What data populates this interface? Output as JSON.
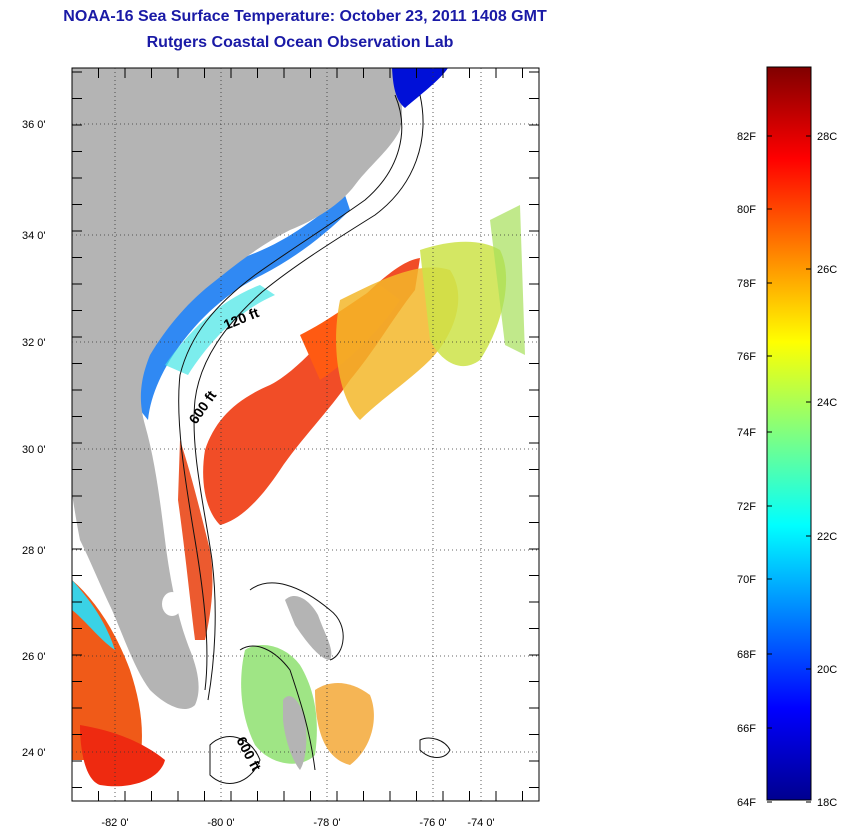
{
  "title": "NOAA-16 Sea Surface Temperature:  October 23, 2011 1408 GMT",
  "subtitle": "Rutgers Coastal Ocean Observation Lab",
  "map": {
    "lat_ticks": [
      "36 0'",
      "34 0'",
      "32 0'",
      "30 0'",
      "28 0'",
      "26 0'",
      "24 0'"
    ],
    "lon_ticks": [
      "-82 0'",
      "-80 0'",
      "-78 0'",
      "-76 0'",
      "-74 0'"
    ],
    "isobaths": [
      "120 ft",
      "600 ft",
      "600 ft"
    ],
    "colors": {
      "land": "#b4b4b4",
      "ocean_nodata": "#ffffff",
      "grid": "#333333"
    }
  },
  "colorbar": {
    "f_labels": [
      "82F",
      "80F",
      "78F",
      "76F",
      "74F",
      "72F",
      "70F",
      "68F",
      "66F",
      "64F"
    ],
    "c_labels": [
      "28C",
      "26C",
      "24C",
      "22C",
      "20C",
      "18C"
    ],
    "colormap": [
      "#00008f",
      "#0000ff",
      "#0080ff",
      "#00ffff",
      "#80ff80",
      "#ffff00",
      "#ff8000",
      "#ff0000",
      "#800000"
    ]
  }
}
